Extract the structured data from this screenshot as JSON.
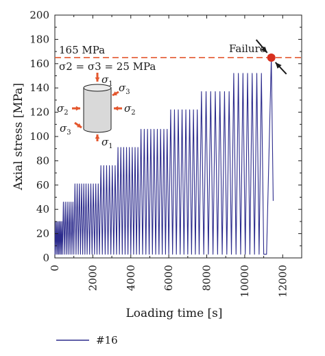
{
  "chart_data": {
    "type": "line",
    "xlabel": "Loading time [s]",
    "ylabel": "Axial stress [MPa]",
    "xlim": [
      0,
      13000
    ],
    "ylim": [
      0,
      200
    ],
    "xticks": [
      "0",
      "2000",
      "4000",
      "6000",
      "8000",
      "10000",
      "12000"
    ],
    "yticks": [
      "0",
      "20",
      "40",
      "60",
      "80",
      "100",
      "120",
      "140",
      "160",
      "180",
      "200"
    ],
    "grid": false,
    "legend_position": "bottom-left",
    "series": [
      {
        "name": "#16",
        "color": "#2b2a8c",
        "stages": [
          {
            "t_start": 0,
            "t_end": 400,
            "peak": 30,
            "trough": 3,
            "cycles": 6
          },
          {
            "t_start": 400,
            "t_end": 1000,
            "peak": 46,
            "trough": 3,
            "cycles": 6
          },
          {
            "t_start": 1000,
            "t_end": 1700,
            "peak": 61,
            "trough": 3,
            "cycles": 6
          },
          {
            "t_start": 1700,
            "t_end": 2350,
            "peak": 61,
            "trough": 3,
            "cycles": 5
          },
          {
            "t_start": 2350,
            "t_end": 3250,
            "peak": 76,
            "trough": 3,
            "cycles": 6
          },
          {
            "t_start": 3250,
            "t_end": 4450,
            "peak": 91,
            "trough": 3,
            "cycles": 8
          },
          {
            "t_start": 4450,
            "t_end": 6000,
            "peak": 106,
            "trough": 3,
            "cycles": 9
          },
          {
            "t_start": 6000,
            "t_end": 7600,
            "peak": 122,
            "trough": 3,
            "cycles": 8
          },
          {
            "t_start": 7600,
            "t_end": 9300,
            "peak": 137,
            "trough": 3,
            "cycles": 7
          },
          {
            "t_start": 9300,
            "t_end": 11000,
            "peak": 152,
            "trough": 3,
            "cycles": 7
          }
        ],
        "final_ramp": {
          "t_start": 11150,
          "t_peak": 11400,
          "peak": 165,
          "t_end": 11500,
          "end_value": 47
        }
      }
    ],
    "annotations": {
      "strength_line_value": 165,
      "strength_label": "165 MPa",
      "confining_label": "σ2 = σ3 = 25 MPa",
      "failure_label": "Failure",
      "failure_point": {
        "x": 11400,
        "y": 165
      }
    },
    "colors": {
      "series": "#2b2a8c",
      "failure_line": "#e4572e",
      "failure_dot": "#d7301f",
      "arrows": "#e4572e",
      "specimen_fill": "#d9d9d9"
    },
    "specimen_labels": {
      "sigma1_top": "σ1",
      "sigma1_bottom": "σ1",
      "sigma2_left": "σ2",
      "sigma2_right": "σ2",
      "sigma3_left": "σ3",
      "sigma3_right": "σ3"
    }
  }
}
